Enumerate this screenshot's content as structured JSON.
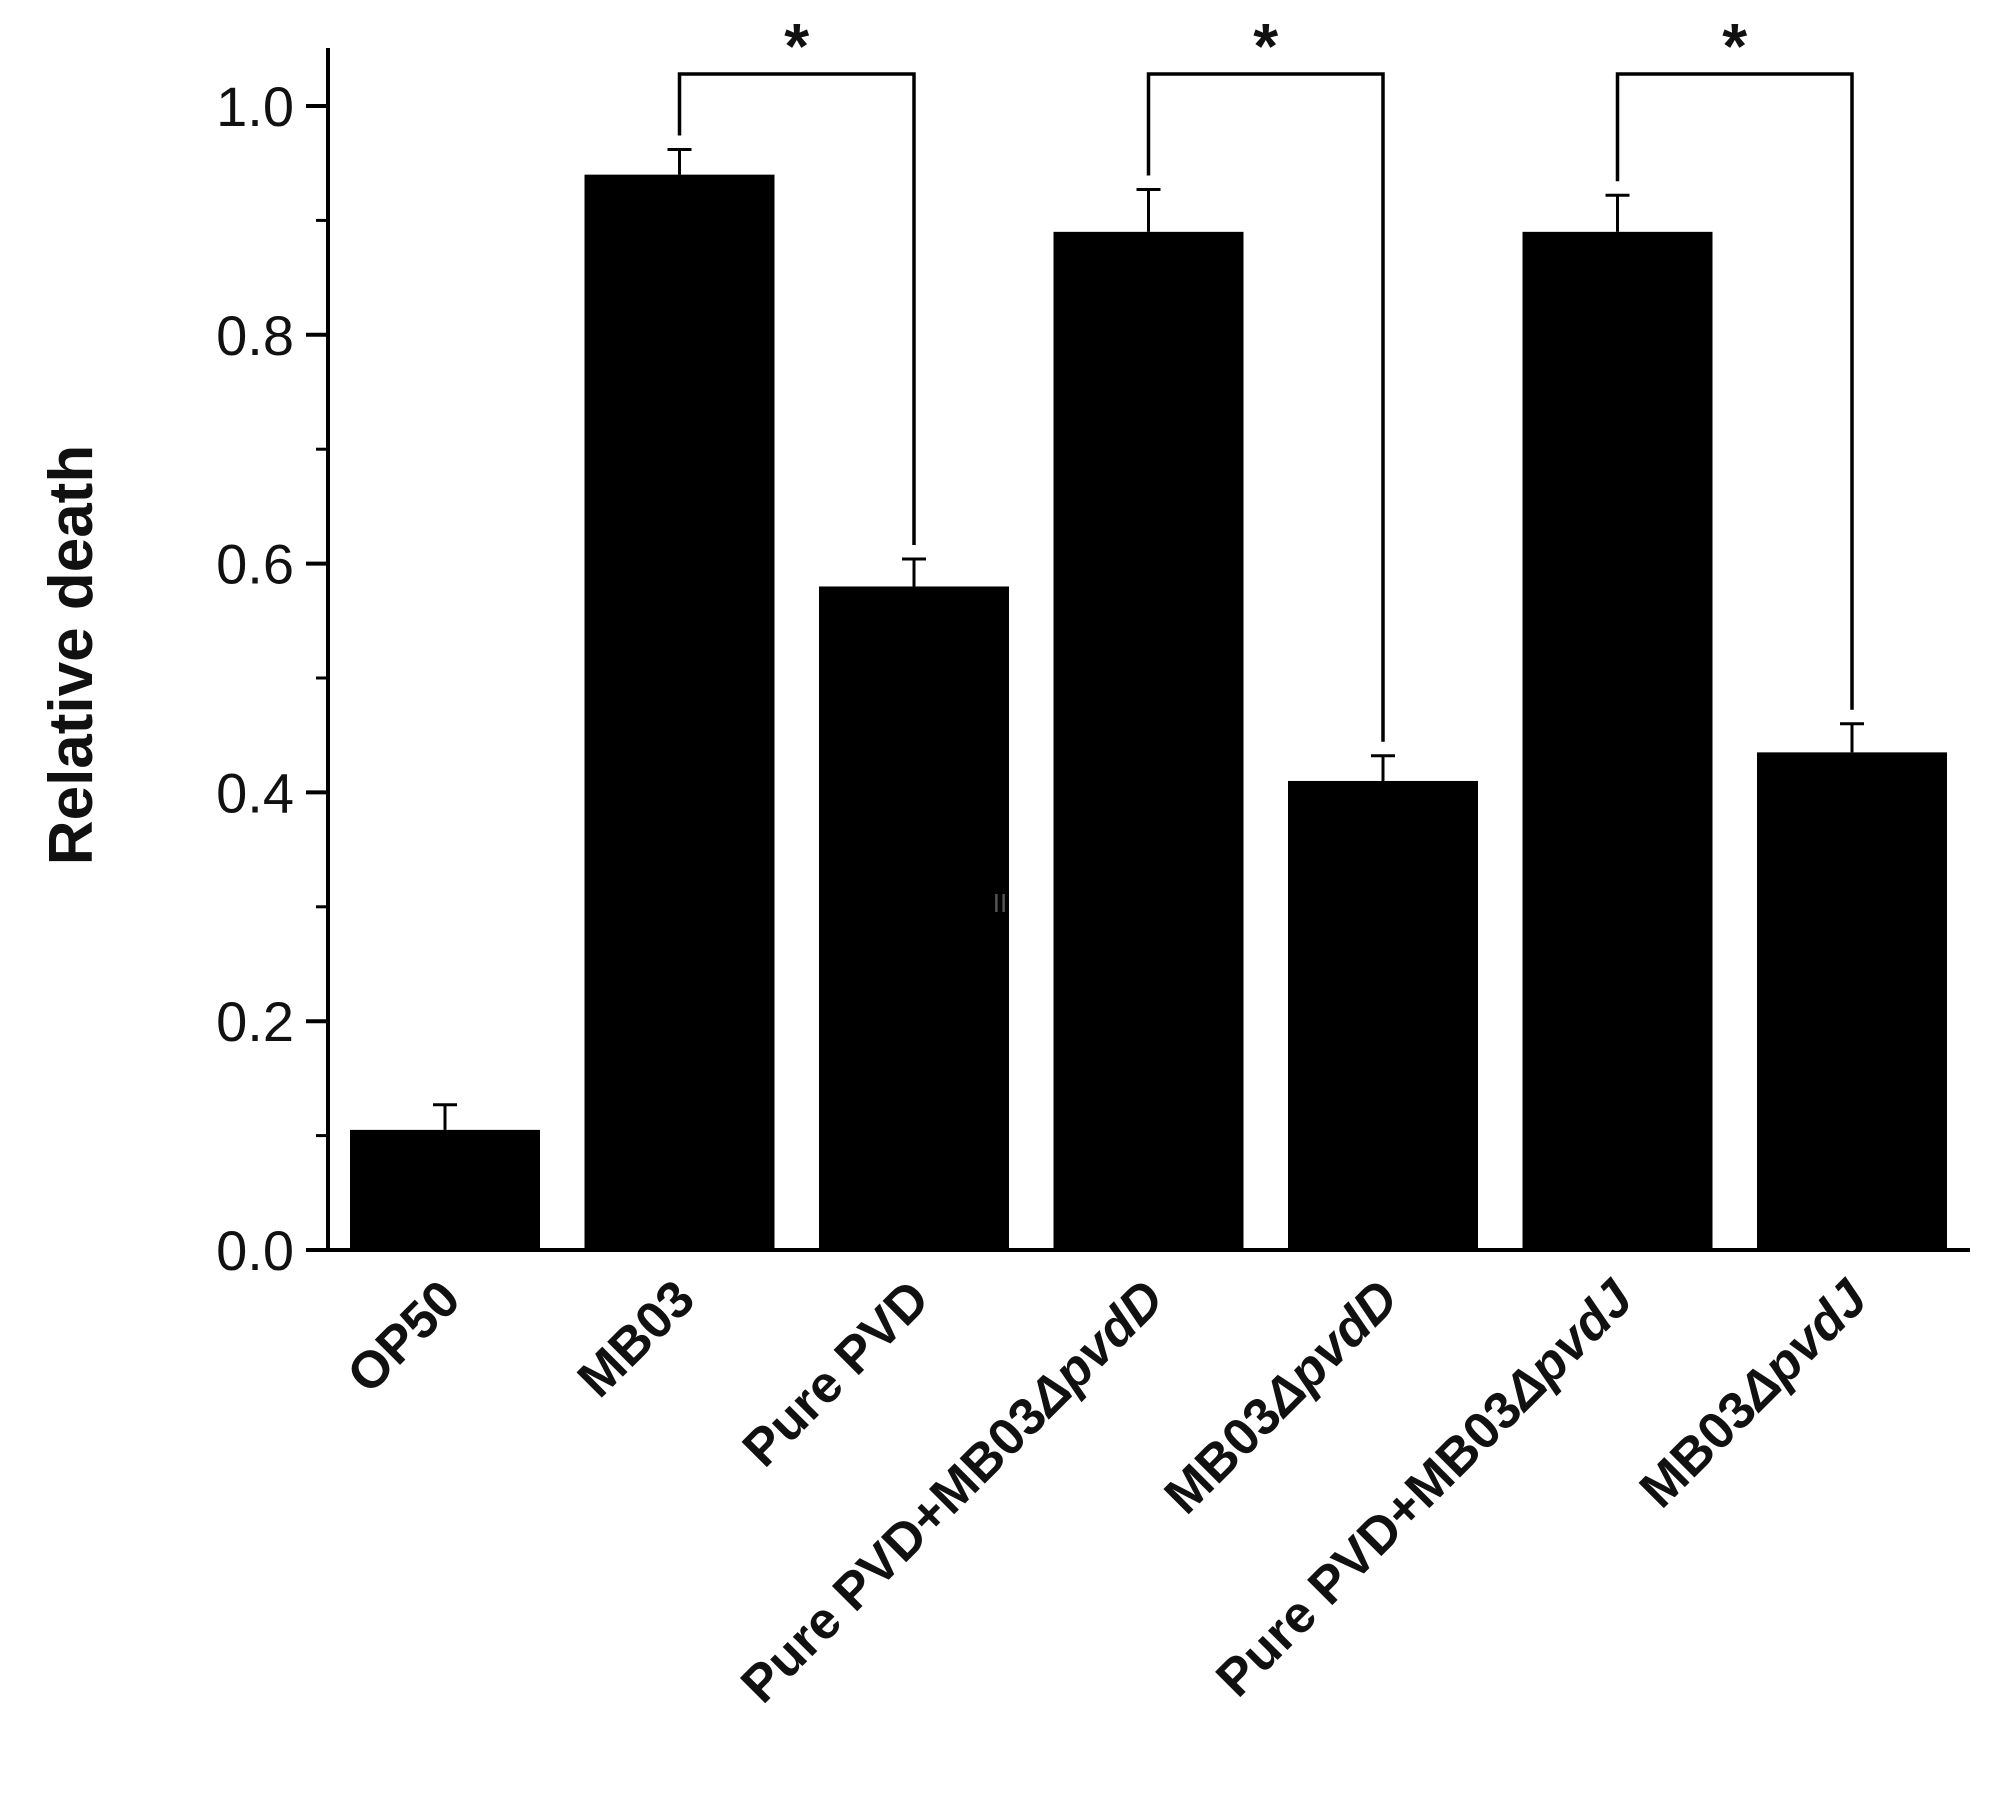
{
  "chart_data": {
    "type": "bar",
    "title": "",
    "xlabel": "",
    "ylabel": "Relative death",
    "ylim": [
      0,
      1.05
    ],
    "yticks": [
      0.0,
      0.2,
      0.4,
      0.6,
      0.8,
      1.0
    ],
    "ytick_labels": [
      "0.0",
      "0.2",
      "0.4",
      "0.6",
      "0.8",
      "1.0"
    ],
    "grid": false,
    "legend": "none",
    "bar_color": "#000000",
    "categories": [
      {
        "label": "OP50",
        "prefix": "OP50",
        "italic": ""
      },
      {
        "label": "MB03",
        "prefix": "MB03",
        "italic": ""
      },
      {
        "label": "Pure PVD",
        "prefix": "Pure PVD",
        "italic": ""
      },
      {
        "label": "Pure PVD+MB03ΔpvdD",
        "prefix": "Pure PVD+MB03",
        "italic": "ΔpvdD"
      },
      {
        "label": "MB03ΔpvdD",
        "prefix": "MB03",
        "italic": "ΔpvdD"
      },
      {
        "label": "Pure PVD+MB03ΔpvdJ",
        "prefix": "Pure PVD+MB03",
        "italic": "ΔpvdJ"
      },
      {
        "label": "MB03ΔpvdJ",
        "prefix": "MB03",
        "italic": "ΔpvdJ"
      }
    ],
    "values": [
      0.105,
      0.94,
      0.58,
      0.89,
      0.41,
      0.89,
      0.435
    ],
    "errors": [
      0.022,
      0.022,
      0.024,
      0.037,
      0.022,
      0.032,
      0.025
    ],
    "significance": [
      {
        "from": 1,
        "to": 2,
        "label": "*"
      },
      {
        "from": 3,
        "to": 4,
        "label": "*"
      },
      {
        "from": 5,
        "to": 6,
        "label": "*"
      }
    ],
    "annotations": [
      "II"
    ]
  }
}
